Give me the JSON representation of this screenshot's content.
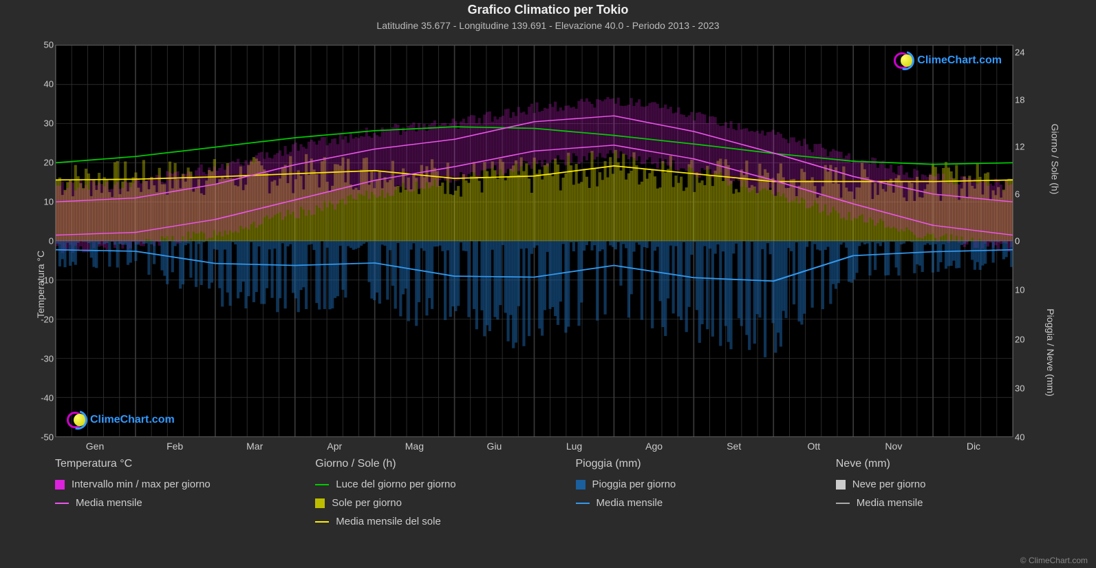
{
  "title": "Grafico Climatico per Tokio",
  "subtitle": "Latitudine 35.677 - Longitudine 139.691 - Elevazione 40.0 - Periodo 2013 - 2023",
  "watermark_text": "ClimeChart.com",
  "copyright": "© ClimeChart.com",
  "colors": {
    "background_page": "#2b2b2b",
    "background_plot": "#000000",
    "grid": "#444444",
    "text": "#cccccc",
    "daylight_line": "#00cc00",
    "sun_line": "#ffee00",
    "sun_bars": "#bdbd00",
    "temp_minmax_line": "#ee55ee",
    "temp_range_fill": "#dd22dd",
    "rain_line": "#3399ee",
    "rain_bars": "#1a5f9e",
    "snow_bars": "#cccccc",
    "snow_line": "#aaaaaa",
    "watermark_text": "#3399ff",
    "watermark_magenta": "#cc00cc",
    "watermark_yellow": "#dddd00",
    "watermark_blue": "#3399ff"
  },
  "yaxis_left": {
    "label": "Temperatura °C",
    "min": -50,
    "max": 50,
    "ticks": [
      50,
      40,
      30,
      20,
      10,
      0,
      -10,
      -20,
      -30,
      -40,
      -50
    ]
  },
  "yaxis_right_top": {
    "label": "Giorno / Sole (h)",
    "min": 0,
    "max": 24,
    "ticks": [
      24,
      18,
      12,
      6,
      0
    ]
  },
  "yaxis_right_bottom": {
    "label": "Pioggia / Neve (mm)",
    "min": 0,
    "max": 40,
    "ticks": [
      0,
      10,
      20,
      30,
      40
    ]
  },
  "xaxis": {
    "labels": [
      "Gen",
      "Feb",
      "Mar",
      "Apr",
      "Mag",
      "Giu",
      "Lug",
      "Ago",
      "Set",
      "Ott",
      "Nov",
      "Dic"
    ]
  },
  "series": {
    "daylight_hours": [
      10.0,
      10.8,
      12.0,
      13.2,
      14.1,
      14.6,
      14.4,
      13.5,
      12.4,
      11.2,
      10.2,
      9.8
    ],
    "sunshine_hours": [
      7.8,
      7.9,
      8.2,
      8.6,
      9.0,
      8.0,
      8.3,
      9.6,
      8.6,
      7.6,
      7.6,
      7.6
    ],
    "temp_avg_min": [
      1.5,
      2.2,
      5.5,
      10.5,
      15.5,
      19.0,
      23.0,
      24.5,
      21.0,
      15.5,
      9.5,
      4.0
    ],
    "temp_avg_max": [
      10.0,
      11.0,
      14.5,
      19.5,
      23.5,
      26.0,
      30.5,
      32.0,
      28.0,
      22.5,
      16.5,
      12.0
    ],
    "temp_avg": [
      5.5,
      6.5,
      10.0,
      15.0,
      19.5,
      22.5,
      26.5,
      28.0,
      24.5,
      19.0,
      13.0,
      8.0
    ],
    "rain_mm_per_day": [
      1.8,
      2.1,
      4.6,
      5.0,
      4.5,
      7.2,
      7.4,
      5.0,
      7.5,
      8.2,
      3.0,
      2.2
    ],
    "snow_avg": [
      0.1,
      0.2,
      0,
      0,
      0,
      0,
      0,
      0,
      0,
      0,
      0,
      0
    ],
    "temp_range_low": [
      -2,
      -1,
      2,
      7,
      12,
      16,
      20,
      22,
      18,
      12,
      6,
      1
    ],
    "temp_range_high": [
      14,
      15,
      19,
      24,
      28,
      30,
      34,
      36,
      32,
      27,
      21,
      16
    ]
  },
  "legend": {
    "col1_title": "Temperatura °C",
    "col1_items": [
      {
        "type": "swatch",
        "color": "#dd22dd",
        "label": "Intervallo min / max per giorno"
      },
      {
        "type": "line",
        "color": "#ee55ee",
        "label": "Media mensile"
      }
    ],
    "col2_title": "Giorno / Sole (h)",
    "col2_items": [
      {
        "type": "line",
        "color": "#00cc00",
        "label": "Luce del giorno per giorno"
      },
      {
        "type": "swatch",
        "color": "#bdbd00",
        "label": "Sole per giorno"
      },
      {
        "type": "line",
        "color": "#ffee00",
        "label": "Media mensile del sole"
      }
    ],
    "col3_title": "Pioggia (mm)",
    "col3_items": [
      {
        "type": "swatch",
        "color": "#1a5f9e",
        "label": "Pioggia per giorno"
      },
      {
        "type": "line",
        "color": "#3399ee",
        "label": "Media mensile"
      }
    ],
    "col4_title": "Neve (mm)",
    "col4_items": [
      {
        "type": "swatch",
        "color": "#cccccc",
        "label": "Neve per giorno"
      },
      {
        "type": "line",
        "color": "#aaaaaa",
        "label": "Media mensile"
      }
    ]
  },
  "daily_bars": {
    "count": 365
  }
}
